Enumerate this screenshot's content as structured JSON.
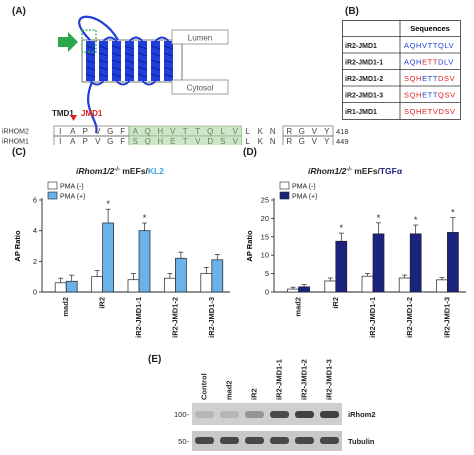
{
  "panels": {
    "a": "(A)",
    "b": "(B)",
    "c": "(C)",
    "d": "(D)",
    "e": "(E)"
  },
  "topology": {
    "lumen": "Lumen",
    "cytosol": "Cytosol",
    "tmd1": "TMD1",
    "jmd1": "JMD1"
  },
  "alignment": {
    "rows": [
      {
        "name": "iRHOM2",
        "pre": [
          "I",
          "A",
          "P",
          "V",
          "G",
          "F"
        ],
        "jmd": [
          "A",
          "Q",
          "H",
          "V",
          "T",
          "T",
          "Q",
          "L",
          "V"
        ],
        "post": [
          "L",
          "K",
          "N"
        ],
        "tail": [
          "R",
          "G",
          "V",
          "Y"
        ],
        "end": "418"
      },
      {
        "name": "iRHOM1",
        "pre": [
          "I",
          "A",
          "P",
          "V",
          "G",
          "F"
        ],
        "jmd": [
          "S",
          "Q",
          "H",
          "E",
          "T",
          "V",
          "D",
          "S",
          "V"
        ],
        "post": [
          "L",
          "K",
          "N"
        ],
        "tail": [
          "R",
          "G",
          "V",
          "Y"
        ],
        "end": "449"
      }
    ]
  },
  "sequences_table": {
    "header": "Sequences",
    "rows": [
      {
        "name": "iR2-JMD1",
        "seq": [
          [
            "AQHVTTQLV",
            "b"
          ]
        ]
      },
      {
        "name": "iR2-JMD1-1",
        "seq": [
          [
            "AQH",
            "b"
          ],
          [
            "ETT",
            "r"
          ],
          [
            "DLV",
            "b"
          ]
        ]
      },
      {
        "name": "iR2-JMD1-2",
        "seq": [
          [
            "SQH",
            "r"
          ],
          [
            "ETT",
            "b"
          ],
          [
            "DSV",
            "r"
          ]
        ]
      },
      {
        "name": "iR2-JMD1-3",
        "seq": [
          [
            "SQH",
            "r"
          ],
          [
            "ETT",
            "b"
          ],
          [
            "QSV",
            "r"
          ]
        ]
      },
      {
        "name": "iR1-JMD1",
        "seq": [
          [
            "SQHETVDSV",
            "r"
          ]
        ]
      }
    ]
  },
  "chart_data": [
    {
      "type": "bar",
      "title_parts": [
        [
          "iRhom1/2",
          "#222"
        ],
        [
          "-/-",
          "#222"
        ],
        [
          " mEFs/",
          "#222"
        ],
        [
          "KL2",
          "#3ea1e0"
        ]
      ],
      "ylabel": "AP Ratio",
      "ylim": [
        0,
        6
      ],
      "yticks": [
        "0",
        "2",
        "4",
        "6"
      ],
      "categories": [
        "mad2",
        "iR2",
        "iR2-JMD1-1",
        "iR2-JMD1-2",
        "iR2-JMD1-3"
      ],
      "series": [
        {
          "name": "PMA (-)",
          "color": "#ffffff",
          "values": [
            0.6,
            1.0,
            0.8,
            0.9,
            1.2
          ],
          "errors": [
            0.3,
            0.4,
            0.4,
            0.3,
            0.4
          ]
        },
        {
          "name": "PMA (+)",
          "color": "#6ab2e8",
          "values": [
            0.7,
            4.5,
            4.0,
            2.2,
            2.1
          ],
          "errors": [
            0.4,
            0.9,
            0.5,
            0.4,
            0.35
          ]
        }
      ],
      "significant": [
        [
          1,
          1
        ],
        [
          2,
          1
        ]
      ],
      "legend": [
        "PMA (-)",
        "PMA (+)"
      ]
    },
    {
      "type": "bar",
      "title_parts": [
        [
          "iRhom1/2",
          "#222"
        ],
        [
          "-/-",
          "#222"
        ],
        [
          " mEFs/",
          "#222"
        ],
        [
          "TGF",
          "#1a237e"
        ],
        [
          "α",
          "#1a237e"
        ]
      ],
      "ylabel": "AP Ratio",
      "ylim": [
        0,
        25
      ],
      "yticks": [
        "0",
        "5",
        "10",
        "15",
        "20",
        "25"
      ],
      "categories": [
        "mad2",
        "iR2",
        "iR2-JMD1-1",
        "iR2-JMD1-2",
        "iR2-JMD1-3"
      ],
      "series": [
        {
          "name": "PMA (-)",
          "color": "#ffffff",
          "values": [
            0.8,
            3.0,
            4.3,
            3.8,
            3.3
          ],
          "errors": [
            0.5,
            0.8,
            0.7,
            0.8,
            0.6
          ]
        },
        {
          "name": "PMA (+)",
          "color": "#1a237e",
          "values": [
            1.4,
            13.8,
            15.8,
            15.8,
            16.2
          ],
          "errors": [
            0.6,
            2.2,
            3.0,
            2.4,
            4.0
          ]
        }
      ],
      "significant": [
        [
          1,
          1
        ],
        [
          2,
          1
        ],
        [
          3,
          1
        ],
        [
          4,
          1
        ]
      ],
      "legend": [
        "PMA (-)",
        "PMA (+)"
      ]
    }
  ],
  "blot": {
    "lanes": [
      "Control",
      "mad2",
      "iR2",
      "iR2-JMD1-1",
      "iR2-JMD1-2",
      "iR2-JMD1-3"
    ],
    "markers": [
      "100-",
      "50-"
    ],
    "bands": [
      "iRhom2",
      "Tubulin"
    ]
  }
}
